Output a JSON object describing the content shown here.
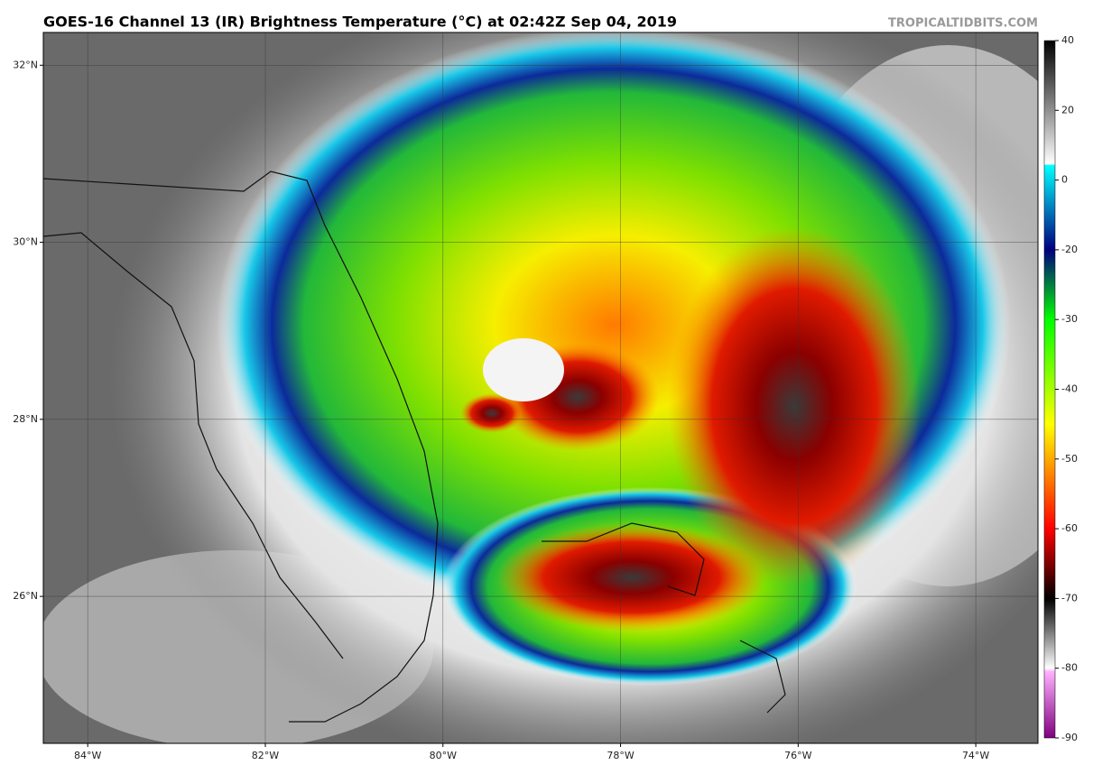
{
  "title": "GOES-16 Channel 13 (IR) Brightness Temperature (°C) at 02:42Z Sep 04, 2019",
  "source": "TROPICALTIDBITS.COM",
  "map": {
    "xlim": [
      -84.5,
      -73.3
    ],
    "ylim": [
      24.34,
      32.37
    ],
    "xticks": [
      {
        "value": -84,
        "label": "84°W"
      },
      {
        "value": -82,
        "label": "82°W"
      },
      {
        "value": -80,
        "label": "80°W"
      },
      {
        "value": -78,
        "label": "78°W"
      },
      {
        "value": -76,
        "label": "76°W"
      },
      {
        "value": -74,
        "label": "74°W"
      }
    ],
    "yticks": [
      {
        "value": 32,
        "label": "32°N"
      },
      {
        "value": 30,
        "label": "30°N"
      },
      {
        "value": 28,
        "label": "28°N"
      },
      {
        "value": 26,
        "label": "26°N"
      }
    ]
  },
  "colorbar": {
    "ticks": [
      40,
      20,
      0,
      -20,
      -30,
      -40,
      -50,
      -60,
      -70,
      -80,
      -90
    ]
  }
}
